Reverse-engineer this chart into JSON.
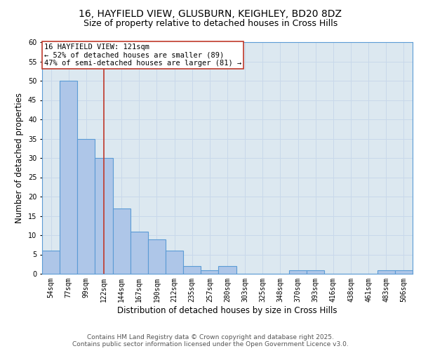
{
  "title_line1": "16, HAYFIELD VIEW, GLUSBURN, KEIGHLEY, BD20 8DZ",
  "title_line2": "Size of property relative to detached houses in Cross Hills",
  "xlabel": "Distribution of detached houses by size in Cross Hills",
  "ylabel": "Number of detached properties",
  "categories": [
    "54sqm",
    "77sqm",
    "99sqm",
    "122sqm",
    "144sqm",
    "167sqm",
    "190sqm",
    "212sqm",
    "235sqm",
    "257sqm",
    "280sqm",
    "303sqm",
    "325sqm",
    "348sqm",
    "370sqm",
    "393sqm",
    "416sqm",
    "438sqm",
    "461sqm",
    "483sqm",
    "506sqm"
  ],
  "values": [
    6,
    50,
    35,
    30,
    17,
    11,
    9,
    6,
    2,
    1,
    2,
    0,
    0,
    0,
    1,
    1,
    0,
    0,
    0,
    1,
    1
  ],
  "bar_color": "#aec6e8",
  "bar_edge_color": "#5b9bd5",
  "bar_edge_width": 0.8,
  "vline_x_index": 3,
  "vline_color": "#c0392b",
  "annotation_text": "16 HAYFIELD VIEW: 121sqm\n← 52% of detached houses are smaller (89)\n47% of semi-detached houses are larger (81) →",
  "annotation_box_color": "white",
  "annotation_box_edge_color": "#c0392b",
  "annotation_fontsize": 7.5,
  "ylim": [
    0,
    60
  ],
  "yticks": [
    0,
    5,
    10,
    15,
    20,
    25,
    30,
    35,
    40,
    45,
    50,
    55,
    60
  ],
  "grid_color": "#c8d8ea",
  "background_color": "#dce8f0",
  "footer_line1": "Contains HM Land Registry data © Crown copyright and database right 2025.",
  "footer_line2": "Contains public sector information licensed under the Open Government Licence v3.0.",
  "title_fontsize": 10,
  "subtitle_fontsize": 9,
  "axis_label_fontsize": 8.5,
  "tick_fontsize": 7,
  "footer_fontsize": 6.5
}
